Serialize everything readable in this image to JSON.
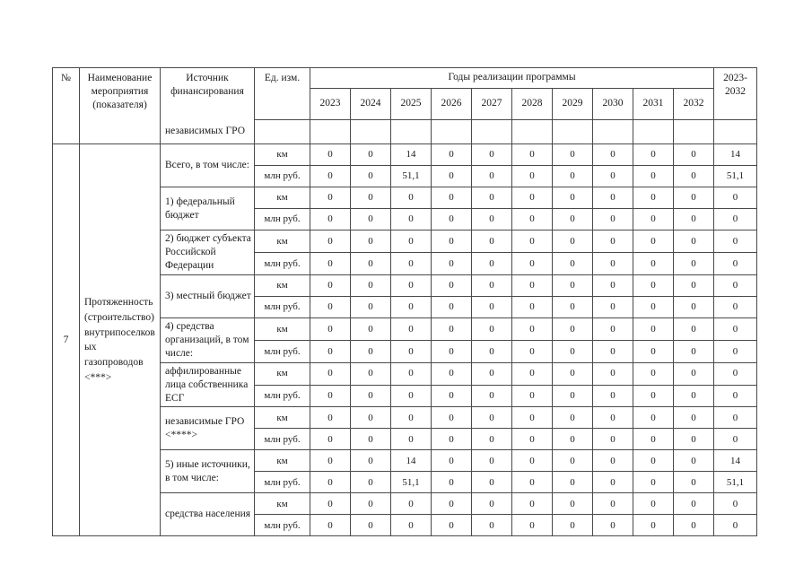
{
  "colors": {
    "border": "#4a4a4a",
    "text": "#1b1b1b",
    "background": "#ffffff"
  },
  "table": {
    "header": {
      "num": "№",
      "name": "Наименование мероприятия (показателя)",
      "source": "Источник финансирования",
      "unit": "Ед. изм.",
      "years_group": "Годы реализации программы",
      "years": [
        "2023",
        "2024",
        "2025",
        "2026",
        "2027",
        "2028",
        "2029",
        "2030",
        "2031",
        "2032"
      ],
      "total": "2023-2032"
    },
    "continuation": {
      "source": "независимых ГРО",
      "unit": "",
      "values": [
        "",
        "",
        "",
        "",
        "",
        "",
        "",
        "",
        "",
        ""
      ],
      "total": ""
    },
    "row7": {
      "num": "7",
      "name": "Протяженность (строительство) внутрипоселковых газопроводов <***>",
      "groups": [
        {
          "source": "Всего, в том числе:",
          "rows": [
            {
              "unit": "км",
              "values": [
                "0",
                "0",
                "14",
                "0",
                "0",
                "0",
                "0",
                "0",
                "0",
                "0"
              ],
              "total": "14"
            },
            {
              "unit": "млн руб.",
              "values": [
                "0",
                "0",
                "51,1",
                "0",
                "0",
                "0",
                "0",
                "0",
                "0",
                "0"
              ],
              "total": "51,1"
            }
          ]
        },
        {
          "source": "1) федеральный бюджет",
          "rows": [
            {
              "unit": "км",
              "values": [
                "0",
                "0",
                "0",
                "0",
                "0",
                "0",
                "0",
                "0",
                "0",
                "0"
              ],
              "total": "0"
            },
            {
              "unit": "млн руб.",
              "values": [
                "0",
                "0",
                "0",
                "0",
                "0",
                "0",
                "0",
                "0",
                "0",
                "0"
              ],
              "total": "0"
            }
          ]
        },
        {
          "source": "2) бюджет субъекта Российской Федерации",
          "rows": [
            {
              "unit": "км",
              "values": [
                "0",
                "0",
                "0",
                "0",
                "0",
                "0",
                "0",
                "0",
                "0",
                "0"
              ],
              "total": "0"
            },
            {
              "unit": "млн руб.",
              "values": [
                "0",
                "0",
                "0",
                "0",
                "0",
                "0",
                "0",
                "0",
                "0",
                "0"
              ],
              "total": "0"
            }
          ]
        },
        {
          "source": "3) местный бюджет",
          "rows": [
            {
              "unit": "км",
              "values": [
                "0",
                "0",
                "0",
                "0",
                "0",
                "0",
                "0",
                "0",
                "0",
                "0"
              ],
              "total": "0"
            },
            {
              "unit": "млн руб.",
              "values": [
                "0",
                "0",
                "0",
                "0",
                "0",
                "0",
                "0",
                "0",
                "0",
                "0"
              ],
              "total": "0"
            }
          ]
        },
        {
          "source": "4) средства организаций, в том числе:",
          "rows": [
            {
              "unit": "км",
              "values": [
                "0",
                "0",
                "0",
                "0",
                "0",
                "0",
                "0",
                "0",
                "0",
                "0"
              ],
              "total": "0"
            },
            {
              "unit": "млн руб.",
              "values": [
                "0",
                "0",
                "0",
                "0",
                "0",
                "0",
                "0",
                "0",
                "0",
                "0"
              ],
              "total": "0"
            }
          ]
        },
        {
          "source": "аффилированные лица собственника ЕСГ",
          "rows": [
            {
              "unit": "км",
              "values": [
                "0",
                "0",
                "0",
                "0",
                "0",
                "0",
                "0",
                "0",
                "0",
                "0"
              ],
              "total": "0"
            },
            {
              "unit": "млн руб.",
              "values": [
                "0",
                "0",
                "0",
                "0",
                "0",
                "0",
                "0",
                "0",
                "0",
                "0"
              ],
              "total": "0"
            }
          ]
        },
        {
          "source": "независимые ГРО <****>",
          "rows": [
            {
              "unit": "км",
              "values": [
                "0",
                "0",
                "0",
                "0",
                "0",
                "0",
                "0",
                "0",
                "0",
                "0"
              ],
              "total": "0"
            },
            {
              "unit": "млн руб.",
              "values": [
                "0",
                "0",
                "0",
                "0",
                "0",
                "0",
                "0",
                "0",
                "0",
                "0"
              ],
              "total": "0"
            }
          ]
        },
        {
          "source": "5) иные источники, в том числе:",
          "rows": [
            {
              "unit": "км",
              "values": [
                "0",
                "0",
                "14",
                "0",
                "0",
                "0",
                "0",
                "0",
                "0",
                "0"
              ],
              "total": "14"
            },
            {
              "unit": "млн руб.",
              "values": [
                "0",
                "0",
                "51,1",
                "0",
                "0",
                "0",
                "0",
                "0",
                "0",
                "0"
              ],
              "total": "51,1"
            }
          ]
        },
        {
          "source": "средства населения",
          "rows": [
            {
              "unit": "км",
              "values": [
                "0",
                "0",
                "0",
                "0",
                "0",
                "0",
                "0",
                "0",
                "0",
                "0"
              ],
              "total": "0"
            },
            {
              "unit": "млн руб.",
              "values": [
                "0",
                "0",
                "0",
                "0",
                "0",
                "0",
                "0",
                "0",
                "0",
                "0"
              ],
              "total": "0"
            }
          ]
        }
      ]
    }
  }
}
